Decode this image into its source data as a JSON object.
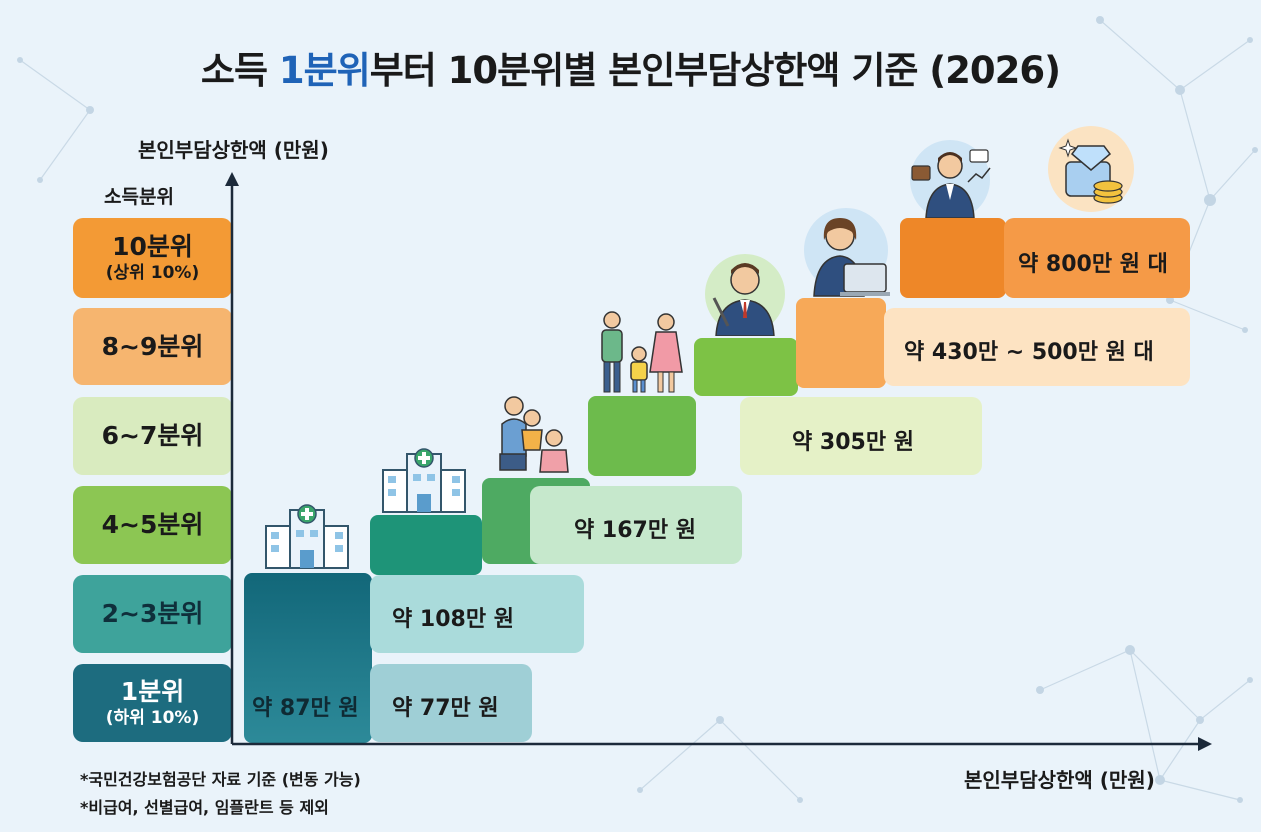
{
  "title": {
    "prefix": "소득 ",
    "highlight": "1분위",
    "suffix": "부터 10분위별 본인부담상한액 기준 (2026)"
  },
  "y_axis_label": "본인부담상한액 (만원)",
  "tier_header": "소득분위",
  "x_axis_label": "본인부담상한액 (만원)",
  "notes": [
    "*국민건강보험공단 자료 기준 (변동 가능)",
    "*비급여, 선별급여, 임플란트 등 제외"
  ],
  "tiers": [
    {
      "main": "10분위",
      "sub": "(상위 10%)",
      "color": "#f39a35"
    },
    {
      "main": "8~9분위",
      "sub": "",
      "color": "#f6b56f"
    },
    {
      "main": "6~7분위",
      "sub": "",
      "color": "#d9ebbf"
    },
    {
      "main": "4~5분위",
      "sub": "",
      "color": "#8cc653"
    },
    {
      "main": "2~3분위",
      "sub": "",
      "color": "#3ea39b"
    },
    {
      "main": "1분위",
      "sub": "(하위 10%)",
      "color": "#1d6c7f"
    }
  ],
  "chart_data": {
    "type": "bar",
    "title": "소득 1분위부터 10분위별 본인부담상한액 기준 (2026)",
    "ylabel": "본인부담상한액 (만원)",
    "xlabel": "본인부담상한액 (만원)",
    "categories": [
      "1분위 (하위 10%)",
      "2~3분위",
      "4~5분위",
      "6~7분위",
      "8~9분위",
      "10분위 (상위 10%)"
    ],
    "labels": [
      "약 87만 원",
      "약 108만 원",
      "약 167만 원",
      "약 305만 원",
      "약 430만 ~ 500만 원 대",
      "약 800만 원 대"
    ],
    "values": [
      87,
      108,
      167,
      305,
      465,
      800
    ],
    "extra_label": "약 77만 원"
  }
}
